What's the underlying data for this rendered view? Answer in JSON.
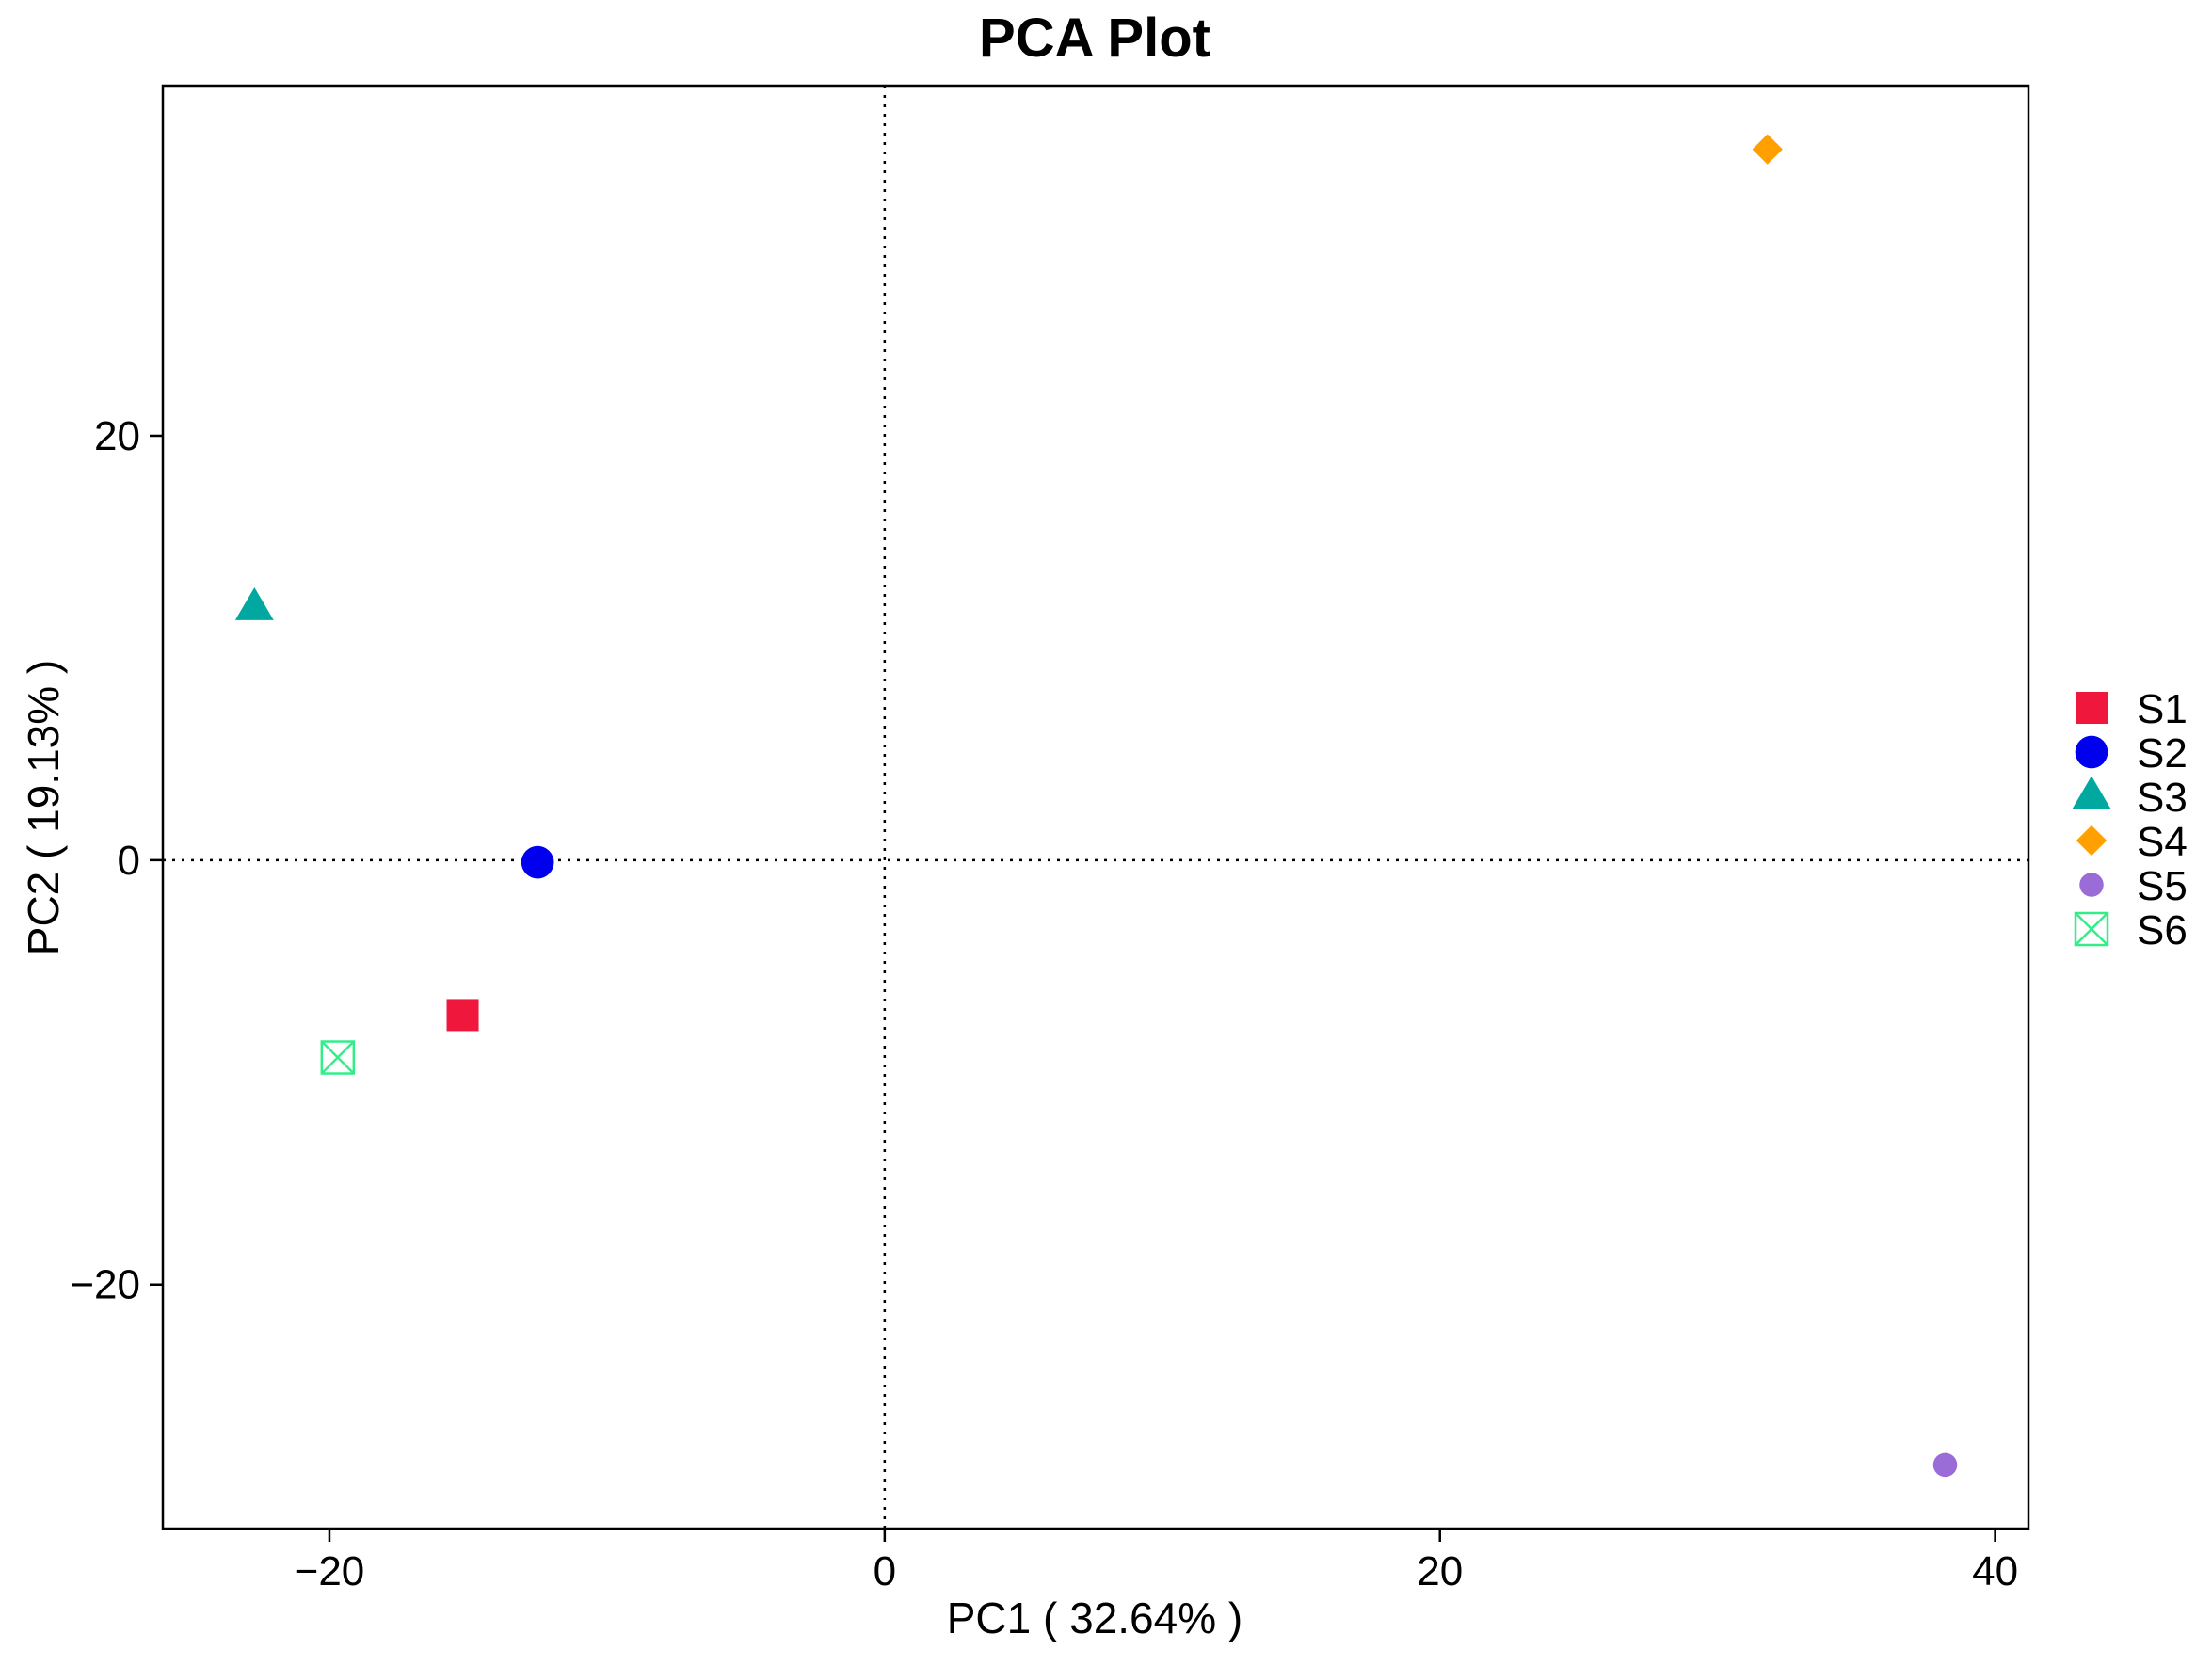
{
  "chart_data": {
    "type": "scatter",
    "title": "PCA Plot",
    "xlabel": "PC1 ( 32.64% )",
    "ylabel": "PC2 ( 19.13% )",
    "xlim": [
      -26,
      41.2
    ],
    "ylim": [
      -31.5,
      36.5
    ],
    "xticks": [
      -20,
      0,
      20,
      40
    ],
    "yticks": [
      -20,
      0,
      20
    ],
    "xtick_labels": [
      "−20",
      "0",
      "20",
      "40"
    ],
    "ytick_labels": [
      "−20",
      "0",
      "20"
    ],
    "reference_lines": {
      "x": 0,
      "y": 0,
      "style": "dotted"
    },
    "grid": false,
    "legend_position": "right",
    "series": [
      {
        "name": "S1",
        "shape": "square",
        "color": "#F0173C",
        "x": -15.2,
        "y": -7.3
      },
      {
        "name": "S2",
        "shape": "circle",
        "color": "#0000EE",
        "x": -12.5,
        "y": -0.1
      },
      {
        "name": "S3",
        "shape": "triangle",
        "color": "#00A8A0",
        "x": -22.7,
        "y": 11.9
      },
      {
        "name": "S4",
        "shape": "diamond",
        "color": "#FFA000",
        "x": 31.8,
        "y": 33.5
      },
      {
        "name": "S5",
        "shape": "small-circle",
        "color": "#9A6CD8",
        "x": 38.2,
        "y": -28.5
      },
      {
        "name": "S6",
        "shape": "boxed-cross",
        "color": "#33EE88",
        "x": -19.7,
        "y": -9.3
      }
    ]
  }
}
